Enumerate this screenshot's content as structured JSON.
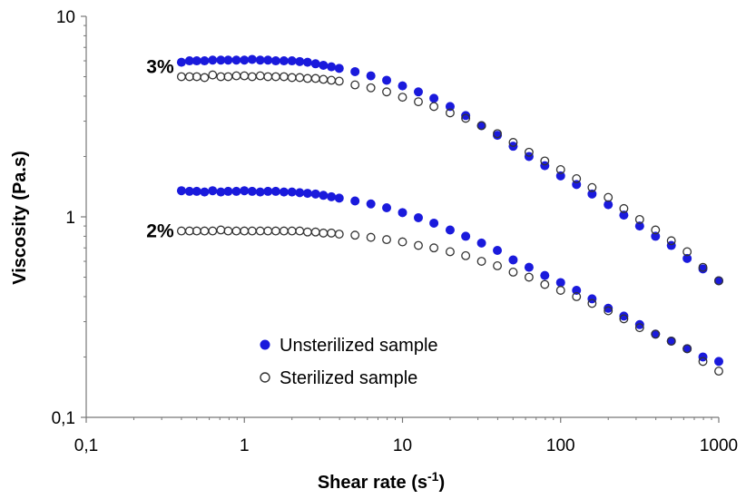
{
  "chart_data": {
    "type": "scatter",
    "x_scale": "log",
    "y_scale": "log",
    "xlim": [
      0.1,
      1000
    ],
    "ylim": [
      0.1,
      10
    ],
    "x_ticks": [
      "0,1",
      "1",
      "10",
      "100",
      "1000"
    ],
    "y_ticks": [
      "0,1",
      "1",
      "10"
    ],
    "xlabel": "Shear rate (s",
    "xlabel_sup": "-1",
    "xlabel_end": ")",
    "ylabel": "Viscosity (Pa.s)",
    "grid": false,
    "legend_position": "bottom-center",
    "annotations": [
      {
        "text": "3%",
        "x": 0.2,
        "y": 5.6
      },
      {
        "text": "2%",
        "x": 0.2,
        "y": 0.85
      }
    ],
    "series": [
      {
        "name": "Unsterilized sample",
        "marker": "filled-circle",
        "color": "#1a1adc",
        "group": "3%",
        "x": [
          0.4,
          0.45,
          0.5,
          0.56,
          0.63,
          0.71,
          0.79,
          0.89,
          1.0,
          1.12,
          1.26,
          1.41,
          1.58,
          1.78,
          2.0,
          2.24,
          2.51,
          2.82,
          3.16,
          3.55,
          3.98,
          5.01,
          6.31,
          7.94,
          10.0,
          12.6,
          15.8,
          20.0,
          25.1,
          31.6,
          39.8,
          50.1,
          63.1,
          79.4,
          100,
          126,
          158,
          200,
          251,
          316,
          398,
          501,
          631,
          794,
          1000
        ],
        "y": [
          5.9,
          6.0,
          6.0,
          6.0,
          6.05,
          6.05,
          6.05,
          6.05,
          6.05,
          6.1,
          6.05,
          6.05,
          6.0,
          6.0,
          6.0,
          5.95,
          5.9,
          5.8,
          5.7,
          5.6,
          5.5,
          5.3,
          5.05,
          4.8,
          4.5,
          4.2,
          3.9,
          3.55,
          3.2,
          2.85,
          2.55,
          2.25,
          2.0,
          1.8,
          1.6,
          1.45,
          1.3,
          1.15,
          1.02,
          0.9,
          0.8,
          0.72,
          0.62,
          0.55,
          0.48
        ]
      },
      {
        "name": "Sterilized sample",
        "marker": "open-circle",
        "color": "#333333",
        "group": "3%",
        "x": [
          0.4,
          0.45,
          0.5,
          0.56,
          0.63,
          0.71,
          0.79,
          0.89,
          1.0,
          1.12,
          1.26,
          1.41,
          1.58,
          1.78,
          2.0,
          2.24,
          2.51,
          2.82,
          3.16,
          3.55,
          3.98,
          5.01,
          6.31,
          7.94,
          10.0,
          12.6,
          15.8,
          20.0,
          25.1,
          31.6,
          39.8,
          50.1,
          63.1,
          79.4,
          100,
          126,
          158,
          200,
          251,
          316,
          398,
          501,
          631,
          794,
          1000
        ],
        "y": [
          5.0,
          5.0,
          5.0,
          4.95,
          5.1,
          5.0,
          5.0,
          5.05,
          5.05,
          5.0,
          5.05,
          5.0,
          5.0,
          5.0,
          4.95,
          4.95,
          4.9,
          4.9,
          4.85,
          4.8,
          4.75,
          4.55,
          4.4,
          4.2,
          3.95,
          3.75,
          3.55,
          3.3,
          3.1,
          2.85,
          2.6,
          2.35,
          2.1,
          1.9,
          1.72,
          1.55,
          1.4,
          1.25,
          1.1,
          0.97,
          0.86,
          0.76,
          0.67,
          0.56,
          0.48
        ]
      },
      {
        "name": "Unsterilized sample",
        "marker": "filled-circle",
        "color": "#1a1adc",
        "group": "2%",
        "x": [
          0.4,
          0.45,
          0.5,
          0.56,
          0.63,
          0.71,
          0.79,
          0.89,
          1.0,
          1.12,
          1.26,
          1.41,
          1.58,
          1.78,
          2.0,
          2.24,
          2.51,
          2.82,
          3.16,
          3.55,
          3.98,
          5.01,
          6.31,
          7.94,
          10.0,
          12.6,
          15.8,
          20.0,
          25.1,
          31.6,
          39.8,
          50.1,
          63.1,
          79.4,
          100,
          126,
          158,
          200,
          251,
          316,
          398,
          501,
          631,
          794,
          1000
        ],
        "y": [
          1.35,
          1.34,
          1.34,
          1.33,
          1.35,
          1.33,
          1.34,
          1.34,
          1.35,
          1.34,
          1.33,
          1.34,
          1.34,
          1.33,
          1.33,
          1.32,
          1.31,
          1.3,
          1.28,
          1.26,
          1.24,
          1.2,
          1.16,
          1.11,
          1.05,
          0.99,
          0.93,
          0.86,
          0.8,
          0.74,
          0.68,
          0.61,
          0.56,
          0.51,
          0.47,
          0.43,
          0.39,
          0.35,
          0.32,
          0.29,
          0.26,
          0.24,
          0.22,
          0.2,
          0.19
        ]
      },
      {
        "name": "Sterilized sample",
        "marker": "open-circle",
        "color": "#333333",
        "group": "2%",
        "x": [
          0.4,
          0.45,
          0.5,
          0.56,
          0.63,
          0.71,
          0.79,
          0.89,
          1.0,
          1.12,
          1.26,
          1.41,
          1.58,
          1.78,
          2.0,
          2.24,
          2.51,
          2.82,
          3.16,
          3.55,
          3.98,
          5.01,
          6.31,
          7.94,
          10.0,
          12.6,
          15.8,
          20.0,
          25.1,
          31.6,
          39.8,
          50.1,
          63.1,
          79.4,
          100,
          126,
          158,
          200,
          251,
          316,
          398,
          501,
          631,
          794,
          1000
        ],
        "y": [
          0.85,
          0.85,
          0.85,
          0.85,
          0.85,
          0.86,
          0.85,
          0.85,
          0.85,
          0.85,
          0.85,
          0.85,
          0.85,
          0.85,
          0.85,
          0.85,
          0.84,
          0.84,
          0.83,
          0.83,
          0.82,
          0.81,
          0.79,
          0.77,
          0.75,
          0.72,
          0.7,
          0.67,
          0.64,
          0.6,
          0.57,
          0.53,
          0.5,
          0.46,
          0.43,
          0.4,
          0.37,
          0.34,
          0.31,
          0.28,
          0.26,
          0.24,
          0.22,
          0.19,
          0.17
        ]
      }
    ],
    "legend": [
      {
        "label": "Unsterilized sample",
        "marker": "filled-circle",
        "color": "#1a1adc"
      },
      {
        "label": "Sterilized sample",
        "marker": "open-circle",
        "color": "#333333"
      }
    ]
  }
}
